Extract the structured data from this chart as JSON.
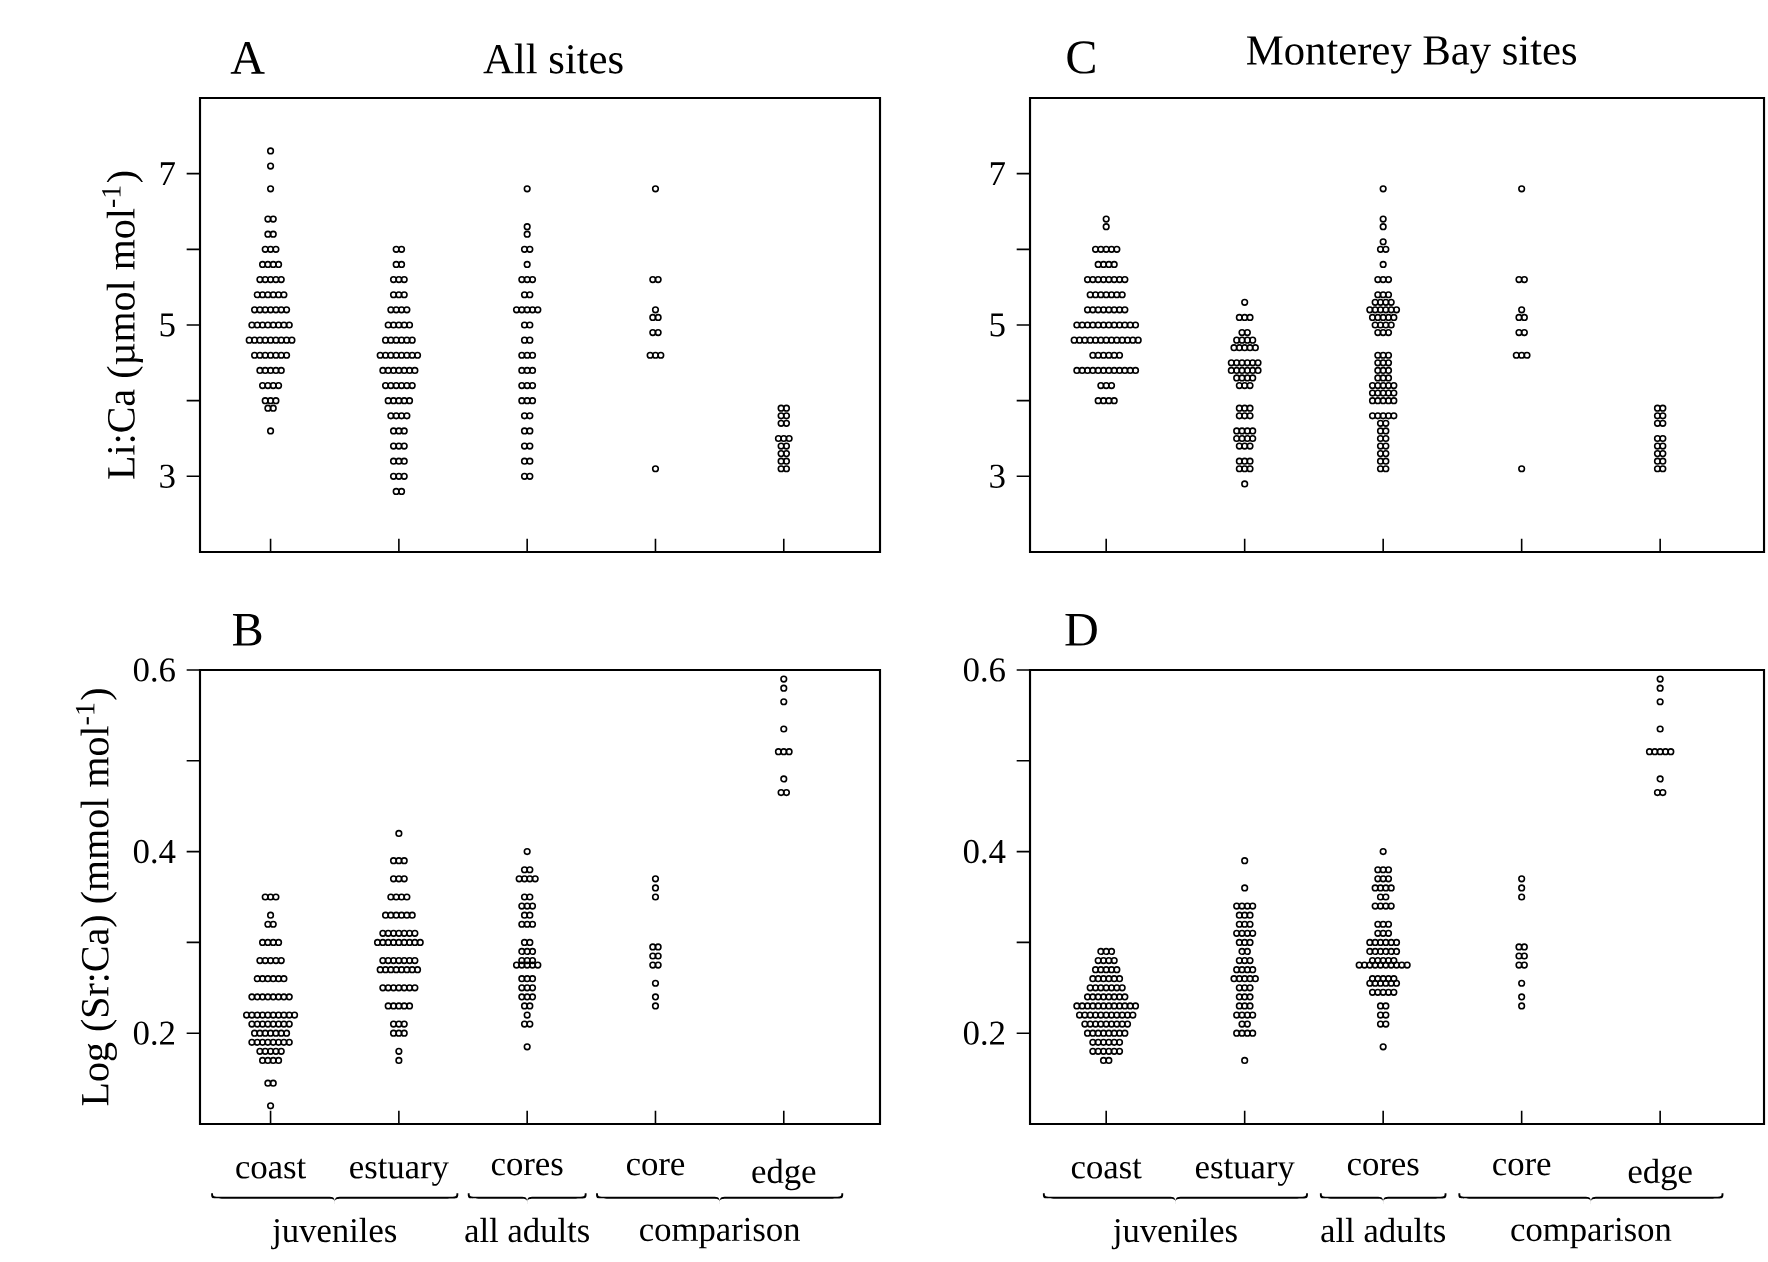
{
  "chart_data": [
    {
      "type": "scatter",
      "title": "All sites",
      "annotations": [
        "A"
      ],
      "ylabel": "Li:Ca (µmol mol$^{-1}$)",
      "categories": [
        "coast",
        "estuary",
        "cores",
        "core",
        "edge"
      ],
      "ylim": [
        2,
        8
      ],
      "yticks": [
        3,
        {
          "value": 4,
          "label": null
        },
        5,
        {
          "value": 6,
          "label": null
        },
        7
      ],
      "tick_labels": "y",
      "marker": "circle",
      "series": [
        {
          "color": "#000000",
          "x": [
            "coast",
            "coast",
            "coast",
            "coast",
            "coast",
            "coast",
            "coast",
            "coast",
            "coast",
            "coast",
            "coast",
            "coast",
            "coast",
            "coast",
            "coast",
            "coast",
            "coast",
            "coast",
            "coast",
            "coast",
            "coast",
            "coast",
            "coast",
            "coast",
            "coast",
            "coast",
            "coast",
            "coast",
            "coast",
            "coast",
            "coast",
            "coast",
            "coast",
            "coast",
            "coast",
            "coast",
            "coast",
            "coast",
            "coast",
            "coast",
            "coast",
            "coast",
            "coast",
            "coast",
            "coast",
            "coast",
            "coast",
            "coast",
            "coast",
            "coast",
            "coast",
            "coast",
            "coast",
            "coast",
            "coast",
            "coast",
            "coast",
            "coast",
            "coast",
            "coast",
            "coast",
            "coast",
            "coast",
            "coast",
            "coast",
            "coast",
            "coast",
            "coast",
            "coast",
            "coast",
            "coast"
          ],
          "values": [
            7.3,
            7.1,
            6.8,
            6.4,
            6.4,
            6.2,
            6.2,
            6.0,
            6.0,
            6.0,
            5.8,
            5.8,
            5.8,
            5.8,
            5.6,
            5.6,
            5.6,
            5.6,
            5.6,
            5.4,
            5.4,
            5.4,
            5.4,
            5.4,
            5.4,
            5.2,
            5.2,
            5.2,
            5.2,
            5.2,
            5.2,
            5.2,
            5.0,
            5.0,
            5.0,
            5.0,
            5.0,
            5.0,
            5.0,
            5.0,
            4.8,
            4.8,
            4.8,
            4.8,
            4.8,
            4.8,
            4.8,
            4.8,
            4.8,
            4.6,
            4.6,
            4.6,
            4.6,
            4.6,
            4.6,
            4.6,
            4.4,
            4.4,
            4.4,
            4.4,
            4.4,
            4.2,
            4.2,
            4.2,
            4.2,
            4.0,
            4.0,
            4.0,
            3.9,
            3.9,
            3.6
          ]
        },
        {
          "color": "#000000",
          "x": [
            "estuary",
            "estuary",
            "estuary",
            "estuary",
            "estuary",
            "estuary",
            "estuary",
            "estuary",
            "estuary",
            "estuary",
            "estuary",
            "estuary",
            "estuary",
            "estuary",
            "estuary",
            "estuary",
            "estuary",
            "estuary",
            "estuary",
            "estuary",
            "estuary",
            "estuary",
            "estuary",
            "estuary",
            "estuary",
            "estuary",
            "estuary",
            "estuary",
            "estuary",
            "estuary",
            "estuary",
            "estuary",
            "estuary",
            "estuary",
            "estuary",
            "estuary",
            "estuary",
            "estuary",
            "estuary",
            "estuary",
            "estuary",
            "estuary",
            "estuary",
            "estuary",
            "estuary",
            "estuary",
            "estuary",
            "estuary",
            "estuary",
            "estuary",
            "estuary",
            "estuary",
            "estuary",
            "estuary",
            "estuary",
            "estuary",
            "estuary",
            "estuary",
            "estuary",
            "estuary",
            "estuary",
            "estuary",
            "estuary",
            "estuary",
            "estuary",
            "estuary",
            "estuary",
            "estuary",
            "estuary"
          ],
          "values": [
            6.0,
            6.0,
            5.8,
            5.8,
            5.6,
            5.6,
            5.6,
            5.4,
            5.4,
            5.4,
            5.2,
            5.2,
            5.2,
            5.2,
            5.0,
            5.0,
            5.0,
            5.0,
            5.0,
            4.8,
            4.8,
            4.8,
            4.8,
            4.8,
            4.8,
            4.6,
            4.6,
            4.6,
            4.6,
            4.6,
            4.6,
            4.6,
            4.6,
            4.4,
            4.4,
            4.4,
            4.4,
            4.4,
            4.4,
            4.4,
            4.2,
            4.2,
            4.2,
            4.2,
            4.2,
            4.2,
            4.0,
            4.0,
            4.0,
            4.0,
            4.0,
            3.8,
            3.8,
            3.8,
            3.8,
            3.6,
            3.6,
            3.6,
            3.4,
            3.4,
            3.4,
            3.2,
            3.2,
            3.2,
            3.0,
            3.0,
            3.0,
            2.8,
            2.8
          ]
        },
        {
          "color": "#000000",
          "x": [
            "cores",
            "cores",
            "cores",
            "cores",
            "cores",
            "cores",
            "cores",
            "cores",
            "cores",
            "cores",
            "cores",
            "cores",
            "cores",
            "cores",
            "cores",
            "cores",
            "cores",
            "cores",
            "cores",
            "cores",
            "cores",
            "cores",
            "cores",
            "cores",
            "cores",
            "cores",
            "cores",
            "cores",
            "cores",
            "cores",
            "cores",
            "cores",
            "cores",
            "cores",
            "cores",
            "cores",
            "cores",
            "cores",
            "cores",
            "cores",
            "cores",
            "cores"
          ],
          "values": [
            6.8,
            6.3,
            6.2,
            6.0,
            6.0,
            5.8,
            5.6,
            5.6,
            5.6,
            5.4,
            5.4,
            5.2,
            5.2,
            5.2,
            5.2,
            5.2,
            5.0,
            5.0,
            4.8,
            4.8,
            4.6,
            4.6,
            4.6,
            4.4,
            4.4,
            4.4,
            4.2,
            4.2,
            4.2,
            4.0,
            4.0,
            4.0,
            3.8,
            3.8,
            3.6,
            3.6,
            3.4,
            3.4,
            3.2,
            3.2,
            3.0,
            3.0
          ]
        },
        {
          "color": "#000000",
          "x": [
            "core",
            "core",
            "core",
            "core",
            "core",
            "core",
            "core",
            "core",
            "core",
            "core",
            "core",
            "core"
          ],
          "values": [
            6.8,
            5.6,
            5.6,
            5.2,
            5.1,
            5.1,
            4.9,
            4.9,
            4.6,
            4.6,
            4.6,
            3.1
          ]
        },
        {
          "color": "#000000",
          "x": [
            "edge",
            "edge",
            "edge",
            "edge",
            "edge",
            "edge",
            "edge",
            "edge",
            "edge",
            "edge",
            "edge",
            "edge",
            "edge",
            "edge",
            "edge",
            "edge",
            "edge"
          ],
          "values": [
            3.9,
            3.9,
            3.8,
            3.8,
            3.7,
            3.7,
            3.5,
            3.5,
            3.5,
            3.4,
            3.4,
            3.3,
            3.3,
            3.2,
            3.2,
            3.1,
            3.1
          ]
        }
      ]
    },
    {
      "type": "scatter",
      "annotations": [
        "B",
        "juveniles",
        "all adults",
        "comparison"
      ],
      "ylabel": "Log (Sr:Ca) (mmol mol$^{-1}$)",
      "categories": [
        "coast",
        "estuary",
        "cores",
        "core",
        "edge"
      ],
      "ylim": [
        0.1,
        0.6
      ],
      "yticks": [
        0.2,
        {
          "value": 0.3,
          "label": null
        },
        0.4,
        {
          "value": 0.5,
          "label": null
        },
        0.6
      ],
      "marker": "circle",
      "series": [
        {
          "color": "#000000",
          "x": [
            "coast",
            "coast",
            "coast",
            "coast",
            "coast",
            "coast",
            "coast",
            "coast",
            "coast",
            "coast",
            "coast",
            "coast",
            "coast",
            "coast",
            "coast",
            "coast",
            "coast",
            "coast",
            "coast",
            "coast",
            "coast",
            "coast",
            "coast",
            "coast",
            "coast",
            "coast",
            "coast",
            "coast",
            "coast",
            "coast",
            "coast",
            "coast",
            "coast",
            "coast",
            "coast",
            "coast",
            "coast",
            "coast",
            "coast",
            "coast",
            "coast",
            "coast",
            "coast",
            "coast",
            "coast",
            "coast",
            "coast",
            "coast",
            "coast",
            "coast",
            "coast",
            "coast",
            "coast",
            "coast",
            "coast",
            "coast",
            "coast",
            "coast",
            "coast",
            "coast",
            "coast",
            "coast",
            "coast",
            "coast",
            "coast",
            "coast",
            "coast",
            "coast",
            "coast",
            "coast",
            "coast",
            "coast",
            "coast",
            "coast"
          ],
          "values": [
            0.35,
            0.35,
            0.35,
            0.33,
            0.32,
            0.32,
            0.3,
            0.3,
            0.3,
            0.3,
            0.28,
            0.28,
            0.28,
            0.28,
            0.28,
            0.26,
            0.26,
            0.26,
            0.26,
            0.26,
            0.26,
            0.24,
            0.24,
            0.24,
            0.24,
            0.24,
            0.24,
            0.24,
            0.24,
            0.22,
            0.22,
            0.22,
            0.22,
            0.22,
            0.22,
            0.22,
            0.22,
            0.22,
            0.22,
            0.21,
            0.21,
            0.21,
            0.21,
            0.21,
            0.21,
            0.21,
            0.21,
            0.2,
            0.2,
            0.2,
            0.2,
            0.2,
            0.2,
            0.2,
            0.19,
            0.19,
            0.19,
            0.19,
            0.19,
            0.19,
            0.19,
            0.19,
            0.18,
            0.18,
            0.18,
            0.18,
            0.18,
            0.17,
            0.17,
            0.17,
            0.17,
            0.145,
            0.145,
            0.12
          ]
        },
        {
          "color": "#000000",
          "x": [
            "estuary",
            "estuary",
            "estuary",
            "estuary",
            "estuary",
            "estuary",
            "estuary",
            "estuary",
            "estuary",
            "estuary",
            "estuary",
            "estuary",
            "estuary",
            "estuary",
            "estuary",
            "estuary",
            "estuary",
            "estuary",
            "estuary",
            "estuary",
            "estuary",
            "estuary",
            "estuary",
            "estuary",
            "estuary",
            "estuary",
            "estuary",
            "estuary",
            "estuary",
            "estuary",
            "estuary",
            "estuary",
            "estuary",
            "estuary",
            "estuary",
            "estuary",
            "estuary",
            "estuary",
            "estuary",
            "estuary",
            "estuary",
            "estuary",
            "estuary",
            "estuary",
            "estuary",
            "estuary",
            "estuary",
            "estuary",
            "estuary",
            "estuary",
            "estuary",
            "estuary",
            "estuary",
            "estuary",
            "estuary",
            "estuary",
            "estuary",
            "estuary",
            "estuary",
            "estuary",
            "estuary",
            "estuary",
            "estuary",
            "estuary",
            "estuary",
            "estuary",
            "estuary",
            "estuary"
          ],
          "values": [
            0.42,
            0.39,
            0.39,
            0.39,
            0.37,
            0.37,
            0.37,
            0.35,
            0.35,
            0.35,
            0.35,
            0.33,
            0.33,
            0.33,
            0.33,
            0.33,
            0.33,
            0.31,
            0.31,
            0.31,
            0.31,
            0.31,
            0.31,
            0.31,
            0.3,
            0.3,
            0.3,
            0.3,
            0.3,
            0.3,
            0.3,
            0.3,
            0.3,
            0.28,
            0.28,
            0.28,
            0.28,
            0.28,
            0.28,
            0.28,
            0.27,
            0.27,
            0.27,
            0.27,
            0.27,
            0.27,
            0.27,
            0.27,
            0.25,
            0.25,
            0.25,
            0.25,
            0.25,
            0.25,
            0.25,
            0.23,
            0.23,
            0.23,
            0.23,
            0.23,
            0.21,
            0.21,
            0.21,
            0.2,
            0.2,
            0.2,
            0.18,
            0.17
          ]
        },
        {
          "color": "#000000",
          "x": [
            "cores",
            "cores",
            "cores",
            "cores",
            "cores",
            "cores",
            "cores",
            "cores",
            "cores",
            "cores",
            "cores",
            "cores",
            "cores",
            "cores",
            "cores",
            "cores",
            "cores",
            "cores",
            "cores",
            "cores",
            "cores",
            "cores",
            "cores",
            "cores",
            "cores",
            "cores",
            "cores",
            "cores",
            "cores",
            "cores",
            "cores",
            "cores",
            "cores",
            "cores",
            "cores",
            "cores",
            "cores",
            "cores",
            "cores",
            "cores",
            "cores",
            "cores",
            "cores",
            "cores",
            "cores"
          ],
          "values": [
            0.4,
            0.38,
            0.38,
            0.37,
            0.37,
            0.37,
            0.37,
            0.35,
            0.35,
            0.34,
            0.34,
            0.34,
            0.33,
            0.33,
            0.32,
            0.32,
            0.32,
            0.3,
            0.3,
            0.29,
            0.29,
            0.29,
            0.28,
            0.28,
            0.28,
            0.275,
            0.275,
            0.275,
            0.275,
            0.275,
            0.26,
            0.26,
            0.26,
            0.25,
            0.25,
            0.25,
            0.24,
            0.24,
            0.24,
            0.23,
            0.23,
            0.22,
            0.21,
            0.21,
            0.185
          ]
        },
        {
          "color": "#000000",
          "x": [
            "core",
            "core",
            "core",
            "core",
            "core",
            "core",
            "core",
            "core",
            "core",
            "core",
            "core",
            "core"
          ],
          "values": [
            0.37,
            0.36,
            0.35,
            0.295,
            0.295,
            0.285,
            0.285,
            0.275,
            0.275,
            0.255,
            0.24,
            0.23
          ]
        },
        {
          "color": "#000000",
          "x": [
            "edge",
            "edge",
            "edge",
            "edge",
            "edge",
            "edge",
            "edge",
            "edge",
            "edge",
            "edge"
          ],
          "values": [
            0.59,
            0.58,
            0.565,
            0.535,
            0.51,
            0.51,
            0.51,
            0.48,
            0.465,
            0.465
          ]
        }
      ]
    },
    {
      "type": "scatter",
      "title": "Monterey Bay sites",
      "annotations": [
        "C"
      ],
      "categories": [
        "coast",
        "estuary",
        "cores",
        "core",
        "edge"
      ],
      "ylim": [
        2,
        8
      ],
      "yticks": [
        3,
        {
          "value": 4,
          "label": null
        },
        5,
        {
          "value": 6,
          "label": null
        },
        7
      ],
      "tick_labels": "y",
      "marker": "circle",
      "series": [
        {
          "color": "#000000",
          "x": [
            "coast",
            "coast",
            "coast",
            "coast",
            "coast",
            "coast",
            "coast",
            "coast",
            "coast",
            "coast",
            "coast",
            "coast",
            "coast",
            "coast",
            "coast",
            "coast",
            "coast",
            "coast",
            "coast",
            "coast",
            "coast",
            "coast",
            "coast",
            "coast",
            "coast",
            "coast",
            "coast",
            "coast",
            "coast",
            "coast",
            "coast",
            "coast",
            "coast",
            "coast",
            "coast",
            "coast",
            "coast",
            "coast",
            "coast",
            "coast",
            "coast",
            "coast",
            "coast",
            "coast",
            "coast",
            "coast",
            "coast",
            "coast",
            "coast",
            "coast",
            "coast",
            "coast",
            "coast",
            "coast",
            "coast",
            "coast",
            "coast",
            "coast",
            "coast",
            "coast",
            "coast",
            "coast",
            "coast",
            "coast",
            "coast",
            "coast",
            "coast",
            "coast",
            "coast",
            "coast",
            "coast",
            "coast",
            "coast",
            "coast",
            "coast",
            "coast",
            "coast",
            "coast",
            "coast",
            "coast",
            "coast",
            "coast",
            "coast",
            "coast"
          ],
          "values": [
            6.4,
            6.3,
            6.0,
            6.0,
            6.0,
            6.0,
            6.0,
            5.8,
            5.8,
            5.8,
            5.8,
            5.6,
            5.6,
            5.6,
            5.6,
            5.6,
            5.6,
            5.6,
            5.6,
            5.4,
            5.4,
            5.4,
            5.4,
            5.4,
            5.4,
            5.4,
            5.2,
            5.2,
            5.2,
            5.2,
            5.2,
            5.2,
            5.2,
            5.2,
            5.0,
            5.0,
            5.0,
            5.0,
            5.0,
            5.0,
            5.0,
            5.0,
            5.0,
            5.0,
            5.0,
            5.0,
            4.8,
            4.8,
            4.8,
            4.8,
            4.8,
            4.8,
            4.8,
            4.8,
            4.8,
            4.8,
            4.8,
            4.8,
            4.8,
            4.6,
            4.6,
            4.6,
            4.6,
            4.6,
            4.6,
            4.4,
            4.4,
            4.4,
            4.4,
            4.4,
            4.4,
            4.4,
            4.4,
            4.4,
            4.4,
            4.4,
            4.4,
            4.2,
            4.2,
            4.2,
            4.0,
            4.0,
            4.0,
            4.0
          ]
        },
        {
          "color": "#000000",
          "x": [
            "estuary",
            "estuary",
            "estuary",
            "estuary",
            "estuary",
            "estuary",
            "estuary",
            "estuary",
            "estuary",
            "estuary",
            "estuary",
            "estuary",
            "estuary",
            "estuary",
            "estuary",
            "estuary",
            "estuary",
            "estuary",
            "estuary",
            "estuary",
            "estuary",
            "estuary",
            "estuary",
            "estuary",
            "estuary",
            "estuary",
            "estuary",
            "estuary",
            "estuary",
            "estuary",
            "estuary",
            "estuary",
            "estuary",
            "estuary",
            "estuary",
            "estuary",
            "estuary",
            "estuary",
            "estuary",
            "estuary",
            "estuary",
            "estuary",
            "estuary",
            "estuary",
            "estuary",
            "estuary",
            "estuary",
            "estuary",
            "estuary",
            "estuary",
            "estuary",
            "estuary",
            "estuary",
            "estuary",
            "estuary",
            "estuary",
            "estuary",
            "estuary"
          ],
          "values": [
            5.3,
            5.1,
            5.1,
            5.1,
            4.9,
            4.9,
            4.8,
            4.8,
            4.8,
            4.8,
            4.7,
            4.7,
            4.7,
            4.7,
            4.7,
            4.5,
            4.5,
            4.5,
            4.5,
            4.5,
            4.5,
            4.4,
            4.4,
            4.4,
            4.4,
            4.4,
            4.4,
            4.3,
            4.3,
            4.3,
            4.3,
            4.2,
            4.2,
            4.2,
            3.9,
            3.9,
            3.9,
            3.8,
            3.8,
            3.8,
            3.6,
            3.6,
            3.6,
            3.6,
            3.5,
            3.5,
            3.5,
            3.5,
            3.4,
            3.4,
            3.4,
            3.2,
            3.2,
            3.2,
            3.1,
            3.1,
            3.1,
            2.9
          ]
        },
        {
          "color": "#000000",
          "x": [
            "cores",
            "cores",
            "cores",
            "cores",
            "cores",
            "cores",
            "cores",
            "cores",
            "cores",
            "cores",
            "cores",
            "cores",
            "cores",
            "cores",
            "cores",
            "cores",
            "cores",
            "cores",
            "cores",
            "cores",
            "cores",
            "cores",
            "cores",
            "cores",
            "cores",
            "cores",
            "cores",
            "cores",
            "cores",
            "cores",
            "cores",
            "cores",
            "cores",
            "cores",
            "cores",
            "cores",
            "cores",
            "cores",
            "cores",
            "cores",
            "cores",
            "cores",
            "cores",
            "cores",
            "cores",
            "cores",
            "cores",
            "cores",
            "cores",
            "cores",
            "cores",
            "cores",
            "cores",
            "cores",
            "cores",
            "cores",
            "cores",
            "cores",
            "cores",
            "cores",
            "cores",
            "cores",
            "cores",
            "cores",
            "cores",
            "cores",
            "cores",
            "cores",
            "cores",
            "cores",
            "cores",
            "cores",
            "cores",
            "cores",
            "cores",
            "cores",
            "cores",
            "cores",
            "cores",
            "cores",
            "cores"
          ],
          "values": [
            6.8,
            6.4,
            6.3,
            6.1,
            6.0,
            6.0,
            5.8,
            5.6,
            5.6,
            5.6,
            5.4,
            5.4,
            5.4,
            5.3,
            5.3,
            5.3,
            5.3,
            5.2,
            5.2,
            5.2,
            5.2,
            5.2,
            5.2,
            5.1,
            5.1,
            5.1,
            5.1,
            5.1,
            5.0,
            5.0,
            5.0,
            5.0,
            4.9,
            4.9,
            4.9,
            4.6,
            4.6,
            4.6,
            4.5,
            4.5,
            4.5,
            4.4,
            4.4,
            4.4,
            4.3,
            4.3,
            4.3,
            4.2,
            4.2,
            4.2,
            4.2,
            4.2,
            4.1,
            4.1,
            4.1,
            4.1,
            4.1,
            4.0,
            4.0,
            4.0,
            4.0,
            4.0,
            3.8,
            3.8,
            3.8,
            3.8,
            3.8,
            3.7,
            3.7,
            3.6,
            3.6,
            3.5,
            3.5,
            3.4,
            3.4,
            3.3,
            3.3,
            3.2,
            3.2,
            3.1,
            3.1
          ]
        },
        {
          "color": "#000000",
          "x": [
            "core",
            "core",
            "core",
            "core",
            "core",
            "core",
            "core",
            "core",
            "core",
            "core",
            "core",
            "core"
          ],
          "values": [
            6.8,
            5.6,
            5.6,
            5.2,
            5.1,
            5.1,
            4.9,
            4.9,
            4.6,
            4.6,
            4.6,
            3.1
          ]
        },
        {
          "color": "#000000",
          "x": [
            "edge",
            "edge",
            "edge",
            "edge",
            "edge",
            "edge",
            "edge",
            "edge",
            "edge",
            "edge",
            "edge",
            "edge",
            "edge",
            "edge",
            "edge",
            "edge"
          ],
          "values": [
            3.9,
            3.9,
            3.8,
            3.8,
            3.7,
            3.7,
            3.5,
            3.5,
            3.4,
            3.4,
            3.3,
            3.3,
            3.2,
            3.2,
            3.1,
            3.1
          ]
        }
      ]
    },
    {
      "type": "scatter",
      "annotations": [
        "D",
        "juveniles",
        "all adults",
        "comparison"
      ],
      "categories": [
        "coast",
        "estuary",
        "cores",
        "core",
        "edge"
      ],
      "ylim": [
        0.1,
        0.6
      ],
      "yticks": [
        0.2,
        {
          "value": 0.3,
          "label": null
        },
        0.4,
        {
          "value": 0.5,
          "label": null
        },
        0.6
      ],
      "marker": "circle",
      "series": [
        {
          "color": "#000000",
          "x": [
            "coast",
            "coast",
            "coast",
            "coast",
            "coast",
            "coast",
            "coast",
            "coast",
            "coast",
            "coast",
            "coast",
            "coast",
            "coast",
            "coast",
            "coast",
            "coast",
            "coast",
            "coast",
            "coast",
            "coast",
            "coast",
            "coast",
            "coast",
            "coast",
            "coast",
            "coast",
            "coast",
            "coast",
            "coast",
            "coast",
            "coast",
            "coast",
            "coast",
            "coast",
            "coast",
            "coast",
            "coast",
            "coast",
            "coast",
            "coast",
            "coast",
            "coast",
            "coast",
            "coast",
            "coast",
            "coast",
            "coast",
            "coast",
            "coast",
            "coast",
            "coast",
            "coast",
            "coast",
            "coast",
            "coast",
            "coast",
            "coast",
            "coast",
            "coast",
            "coast",
            "coast",
            "coast",
            "coast",
            "coast",
            "coast",
            "coast",
            "coast",
            "coast",
            "coast",
            "coast",
            "coast",
            "coast",
            "coast",
            "coast",
            "coast",
            "coast",
            "coast",
            "coast",
            "coast",
            "coast",
            "coast",
            "coast",
            "coast",
            "coast",
            "coast",
            "coast",
            "coast"
          ],
          "values": [
            0.29,
            0.29,
            0.29,
            0.28,
            0.28,
            0.28,
            0.28,
            0.27,
            0.27,
            0.27,
            0.27,
            0.27,
            0.26,
            0.26,
            0.26,
            0.26,
            0.26,
            0.26,
            0.25,
            0.25,
            0.25,
            0.25,
            0.25,
            0.25,
            0.25,
            0.24,
            0.24,
            0.24,
            0.24,
            0.24,
            0.24,
            0.24,
            0.24,
            0.23,
            0.23,
            0.23,
            0.23,
            0.23,
            0.23,
            0.23,
            0.23,
            0.23,
            0.23,
            0.23,
            0.23,
            0.22,
            0.22,
            0.22,
            0.22,
            0.22,
            0.22,
            0.22,
            0.22,
            0.22,
            0.22,
            0.22,
            0.21,
            0.21,
            0.21,
            0.21,
            0.21,
            0.21,
            0.21,
            0.21,
            0.21,
            0.2,
            0.2,
            0.2,
            0.2,
            0.2,
            0.2,
            0.2,
            0.2,
            0.19,
            0.19,
            0.19,
            0.19,
            0.19,
            0.19,
            0.18,
            0.18,
            0.18,
            0.18,
            0.18,
            0.18,
            0.17,
            0.17
          ]
        },
        {
          "color": "#000000",
          "x": [
            "estuary",
            "estuary",
            "estuary",
            "estuary",
            "estuary",
            "estuary",
            "estuary",
            "estuary",
            "estuary",
            "estuary",
            "estuary",
            "estuary",
            "estuary",
            "estuary",
            "estuary",
            "estuary",
            "estuary",
            "estuary",
            "estuary",
            "estuary",
            "estuary",
            "estuary",
            "estuary",
            "estuary",
            "estuary",
            "estuary",
            "estuary",
            "estuary",
            "estuary",
            "estuary",
            "estuary",
            "estuary",
            "estuary",
            "estuary",
            "estuary",
            "estuary",
            "estuary",
            "estuary",
            "estuary",
            "estuary",
            "estuary",
            "estuary",
            "estuary",
            "estuary",
            "estuary",
            "estuary",
            "estuary",
            "estuary",
            "estuary",
            "estuary",
            "estuary",
            "estuary",
            "estuary"
          ],
          "values": [
            0.39,
            0.36,
            0.34,
            0.34,
            0.34,
            0.34,
            0.33,
            0.33,
            0.33,
            0.32,
            0.32,
            0.32,
            0.31,
            0.31,
            0.31,
            0.31,
            0.3,
            0.3,
            0.3,
            0.29,
            0.29,
            0.28,
            0.28,
            0.28,
            0.27,
            0.27,
            0.27,
            0.27,
            0.26,
            0.26,
            0.26,
            0.26,
            0.26,
            0.25,
            0.25,
            0.25,
            0.24,
            0.24,
            0.24,
            0.23,
            0.23,
            0.23,
            0.22,
            0.22,
            0.22,
            0.22,
            0.21,
            0.21,
            0.2,
            0.2,
            0.2,
            0.2,
            0.17
          ]
        },
        {
          "color": "#000000",
          "x": [
            "cores",
            "cores",
            "cores",
            "cores",
            "cores",
            "cores",
            "cores",
            "cores",
            "cores",
            "cores",
            "cores",
            "cores",
            "cores",
            "cores",
            "cores",
            "cores",
            "cores",
            "cores",
            "cores",
            "cores",
            "cores",
            "cores",
            "cores",
            "cores",
            "cores",
            "cores",
            "cores",
            "cores",
            "cores",
            "cores",
            "cores",
            "cores",
            "cores",
            "cores",
            "cores",
            "cores",
            "cores",
            "cores",
            "cores",
            "cores",
            "cores",
            "cores",
            "cores",
            "cores",
            "cores",
            "cores",
            "cores",
            "cores",
            "cores",
            "cores",
            "cores",
            "cores",
            "cores",
            "cores",
            "cores",
            "cores",
            "cores",
            "cores",
            "cores",
            "cores",
            "cores",
            "cores",
            "cores",
            "cores",
            "cores",
            "cores",
            "cores",
            "cores",
            "cores",
            "cores",
            "cores",
            "cores",
            "cores"
          ],
          "values": [
            0.4,
            0.38,
            0.38,
            0.38,
            0.37,
            0.37,
            0.37,
            0.36,
            0.36,
            0.36,
            0.36,
            0.35,
            0.35,
            0.34,
            0.34,
            0.34,
            0.34,
            0.32,
            0.32,
            0.32,
            0.31,
            0.31,
            0.31,
            0.3,
            0.3,
            0.3,
            0.3,
            0.3,
            0.3,
            0.29,
            0.29,
            0.29,
            0.29,
            0.29,
            0.29,
            0.28,
            0.28,
            0.28,
            0.28,
            0.28,
            0.275,
            0.275,
            0.275,
            0.275,
            0.275,
            0.275,
            0.275,
            0.275,
            0.275,
            0.275,
            0.26,
            0.26,
            0.26,
            0.26,
            0.26,
            0.255,
            0.255,
            0.255,
            0.255,
            0.255,
            0.255,
            0.245,
            0.245,
            0.245,
            0.245,
            0.245,
            0.23,
            0.23,
            0.22,
            0.22,
            0.21,
            0.21,
            0.185
          ]
        },
        {
          "color": "#000000",
          "x": [
            "core",
            "core",
            "core",
            "core",
            "core",
            "core",
            "core",
            "core",
            "core",
            "core",
            "core",
            "core"
          ],
          "values": [
            0.37,
            0.36,
            0.35,
            0.295,
            0.295,
            0.285,
            0.285,
            0.275,
            0.275,
            0.255,
            0.24,
            0.23
          ]
        },
        {
          "color": "#000000",
          "x": [
            "edge",
            "edge",
            "edge",
            "edge",
            "edge",
            "edge",
            "edge",
            "edge",
            "edge",
            "edge",
            "edge",
            "edge"
          ],
          "values": [
            0.59,
            0.58,
            0.565,
            0.535,
            0.51,
            0.51,
            0.51,
            0.51,
            0.51,
            0.48,
            0.465,
            0.465
          ]
        }
      ]
    }
  ]
}
